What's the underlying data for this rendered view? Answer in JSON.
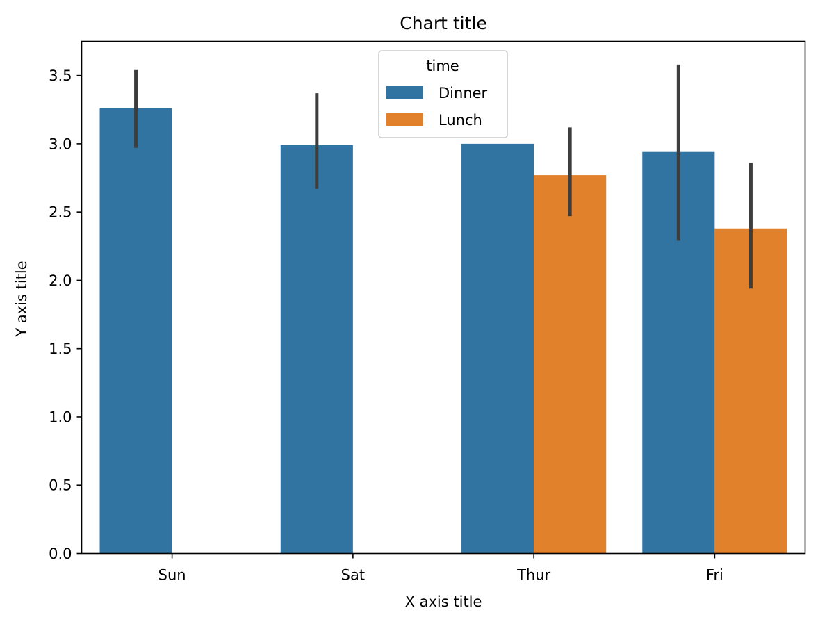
{
  "chart_data": {
    "type": "bar",
    "title": "Chart title",
    "xlabel": "X axis title",
    "ylabel": "Y axis title",
    "categories": [
      "Sun",
      "Sat",
      "Thur",
      "Fri"
    ],
    "ylim": [
      0,
      3.75
    ],
    "yticks": [
      0.0,
      0.5,
      1.0,
      1.5,
      2.0,
      2.5,
      3.0,
      3.5
    ],
    "ytick_labels": [
      "0.0",
      "0.5",
      "1.0",
      "1.5",
      "2.0",
      "2.5",
      "3.0",
      "3.5"
    ],
    "grid": false,
    "legend": {
      "title": "time",
      "placement": "upper center"
    },
    "error_color": "#3d3d3d",
    "series": [
      {
        "name": "Dinner",
        "color": "#3274a1",
        "values": [
          3.26,
          2.99,
          3.0,
          2.94
        ],
        "error_low": [
          2.97,
          2.67,
          null,
          2.29
        ],
        "error_high": [
          3.54,
          3.37,
          null,
          3.58
        ]
      },
      {
        "name": "Lunch",
        "color": "#e1812c",
        "values": [
          null,
          null,
          2.77,
          2.38
        ],
        "error_low": [
          null,
          null,
          2.47,
          1.94
        ],
        "error_high": [
          null,
          null,
          3.12,
          2.86
        ]
      }
    ]
  }
}
